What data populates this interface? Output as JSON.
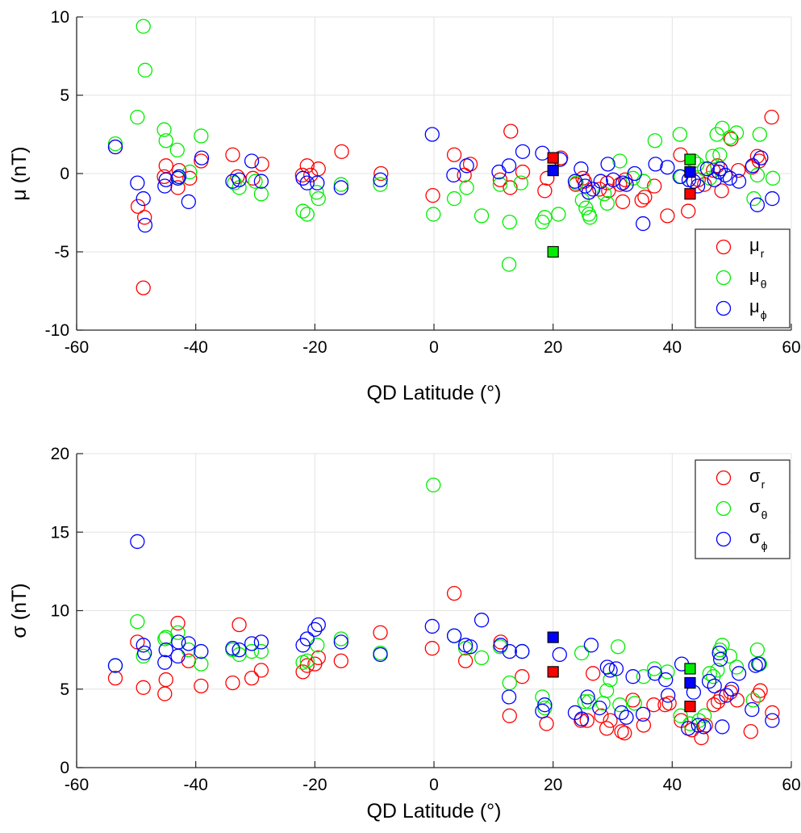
{
  "chart_data": [
    {
      "type": "scatter",
      "xlabel": "QD Latitude (°)",
      "ylabel": "μ (nT)",
      "xlim": [
        -60,
        60
      ],
      "ylim": [
        -10,
        10
      ],
      "xticks": [
        "-60",
        "-40",
        "-20",
        "0",
        "20",
        "40",
        "60"
      ],
      "yticks": [
        "-10",
        "-5",
        "0",
        "5",
        "10"
      ],
      "grid": true,
      "legend_position": "bottom-right",
      "series": [
        {
          "name": "μ_r",
          "label_main": "μ",
          "label_sub": "r",
          "color": "#ff0000",
          "x": [
            -53.5,
            -49.7,
            -48.8,
            -48.6,
            -45.3,
            -45.0,
            -43.0,
            -42.8,
            -41.0,
            -39.1,
            -33.8,
            -33.0,
            -30.4,
            -28.9,
            -22.1,
            -21.3,
            -20.7,
            -19.4,
            -15.5,
            -8.9,
            -0.2,
            3.4,
            5.1,
            6.1,
            11.1,
            12.8,
            12.9,
            14.9,
            18.6,
            19.0,
            21.3,
            23.8,
            25.0,
            25.3,
            26.0,
            27.8,
            29.1,
            29.3,
            31.2,
            31.7,
            32.1,
            34.9,
            35.4,
            37.0,
            39.2,
            41.4,
            42.7,
            44.4,
            45.4,
            46.9,
            47.6,
            48.3,
            49.9,
            51.1,
            53.4,
            54.3,
            54.6,
            56.7
          ],
          "y": [
            1.7,
            -2.1,
            -7.3,
            -2.8,
            -0.2,
            0.5,
            -0.9,
            0.2,
            -0.3,
            0.8,
            1.2,
            -0.2,
            -0.3,
            0.6,
            -0.1,
            0.5,
            -0.1,
            0.3,
            1.4,
            0.0,
            -1.4,
            1.2,
            -0.1,
            0.6,
            -0.4,
            -0.9,
            2.7,
            0.1,
            -1.1,
            -0.3,
            1.0,
            -0.7,
            -0.3,
            -0.5,
            -1.2,
            -1.0,
            -0.6,
            -1.1,
            -0.7,
            -1.8,
            -0.4,
            -1.7,
            -1.5,
            -0.8,
            -2.7,
            1.2,
            -2.4,
            -0.4,
            -0.7,
            0.2,
            0.5,
            -1.1,
            2.2,
            0.2,
            0.4,
            1.1,
            0.8,
            3.6
          ]
        },
        {
          "name": "μ_θ",
          "label_main": "μ",
          "label_sub": "θ",
          "color": "#00ee00",
          "x": [
            -53.5,
            -49.8,
            -48.8,
            -48.5,
            -45.3,
            -45.0,
            -43.1,
            -42.9,
            -41.0,
            -39.1,
            -33.5,
            -32.7,
            -30.0,
            -29.0,
            -22.0,
            -21.3,
            -19.7,
            -19.4,
            -15.6,
            -9.0,
            -0.1,
            3.4,
            5.5,
            8.0,
            11.1,
            12.6,
            12.7,
            14.6,
            18.2,
            18.6,
            20.9,
            23.9,
            24.9,
            25.5,
            26.0,
            26.2,
            28.6,
            29.1,
            31.2,
            33.4,
            35.2,
            37.1,
            41.3,
            41.5,
            43.6,
            44.2,
            45.4,
            46.3,
            46.8,
            47.5,
            48.0,
            48.4,
            49.7,
            50.8,
            53.7,
            54.3,
            54.7,
            56.9
          ],
          "y": [
            1.9,
            3.6,
            9.4,
            6.6,
            2.8,
            2.1,
            1.5,
            -0.3,
            0.1,
            2.4,
            -0.6,
            -0.9,
            -0.5,
            -1.3,
            -2.4,
            -2.6,
            -1.2,
            -1.6,
            -0.7,
            -0.7,
            -2.6,
            -1.6,
            -0.9,
            -2.7,
            -0.7,
            -5.8,
            -3.1,
            -0.6,
            -3.1,
            -2.8,
            -2.6,
            -0.6,
            -1.7,
            -2.2,
            -2.6,
            -2.8,
            -1.3,
            -1.9,
            0.8,
            -0.3,
            -0.5,
            2.1,
            2.5,
            -0.2,
            0.8,
            0.6,
            0.3,
            -0.3,
            1.1,
            2.5,
            1.2,
            2.9,
            2.3,
            2.6,
            -1.6,
            -0.1,
            2.5,
            -0.3
          ]
        },
        {
          "name": "μ_ϕ",
          "label_main": "μ",
          "label_sub": "ϕ",
          "color": "#0000ff",
          "x": [
            -53.5,
            -49.8,
            -48.8,
            -48.5,
            -45.2,
            -45.0,
            -43.0,
            -42.8,
            -41.2,
            -39.0,
            -33.8,
            -32.7,
            -30.6,
            -29.0,
            -22.0,
            -21.3,
            -19.6,
            -15.6,
            -9.0,
            -0.3,
            3.3,
            5.5,
            10.9,
            12.6,
            14.9,
            18.2,
            21.2,
            23.7,
            24.7,
            25.4,
            26.0,
            26.7,
            28.0,
            29.2,
            30.1,
            31.7,
            32.3,
            33.7,
            35.1,
            37.2,
            39.2,
            41.3,
            42.8,
            43.6,
            44.3,
            45.9,
            47.1,
            47.8,
            48.1,
            48.9,
            49.7,
            51.2,
            53.5,
            54.3,
            54.9,
            56.8
          ],
          "y": [
            1.7,
            -0.6,
            -1.6,
            -3.3,
            -0.8,
            -0.4,
            -0.3,
            -0.2,
            -1.8,
            1.0,
            -0.5,
            -0.4,
            0.8,
            -0.5,
            -0.3,
            -0.6,
            -0.6,
            -0.9,
            -0.4,
            2.5,
            -0.1,
            0.5,
            0.1,
            0.5,
            1.4,
            1.3,
            0.9,
            -0.5,
            0.3,
            -0.8,
            -1.2,
            -1.0,
            -0.5,
            0.6,
            -0.4,
            -0.6,
            -0.7,
            0.0,
            -3.2,
            0.6,
            0.4,
            -0.2,
            -0.4,
            -0.5,
            -0.8,
            0.3,
            -0.4,
            0.1,
            0.3,
            -0.1,
            -0.3,
            -0.5,
            0.5,
            -2.0,
            1.0,
            -1.6
          ]
        }
      ],
      "highlighted_points": [
        {
          "series": "μ_r",
          "x": 20.0,
          "y": 1.0,
          "color": "#ff0000"
        },
        {
          "series": "μ_θ",
          "x": 20.0,
          "y": -5.0,
          "color": "#00ee00"
        },
        {
          "series": "μ_ϕ",
          "x": 20.0,
          "y": 0.2,
          "color": "#0000ff"
        },
        {
          "series": "μ_r",
          "x": 43.0,
          "y": -1.3,
          "color": "#ff0000"
        },
        {
          "series": "μ_θ",
          "x": 43.0,
          "y": 0.9,
          "color": "#00ee00"
        },
        {
          "series": "μ_ϕ",
          "x": 43.0,
          "y": 0.1,
          "color": "#0000ff"
        }
      ]
    },
    {
      "type": "scatter",
      "xlabel": "QD Latitude (°)",
      "ylabel": "σ (nT)",
      "xlim": [
        -60,
        60
      ],
      "ylim": [
        0,
        20
      ],
      "xticks": [
        "-60",
        "-40",
        "-20",
        "0",
        "20",
        "40",
        "60"
      ],
      "yticks": [
        "0",
        "5",
        "10",
        "15",
        "20"
      ],
      "grid": true,
      "legend_position": "top-right",
      "series": [
        {
          "name": "σ_r",
          "label_main": "σ",
          "label_sub": "r",
          "color": "#ff0000",
          "x": [
            -53.5,
            -49.8,
            -48.8,
            -45.2,
            -45.0,
            -43.0,
            -41.2,
            -39.1,
            -33.8,
            -32.7,
            -30.6,
            -29.0,
            -22.0,
            -21.3,
            -20.0,
            -19.4,
            -15.6,
            -9.0,
            -0.3,
            3.4,
            5.3,
            11.2,
            12.7,
            14.8,
            18.9,
            24.7,
            25.7,
            26.7,
            28.1,
            29.0,
            29.6,
            31.5,
            32.0,
            33.4,
            35.2,
            36.9,
            38.8,
            39.5,
            41.5,
            43.3,
            44.9,
            45.6,
            47.0,
            47.7,
            48.2,
            49.8,
            50.9,
            53.2,
            54.4,
            54.8,
            56.8
          ],
          "y": [
            5.7,
            8.0,
            5.1,
            4.7,
            5.6,
            9.2,
            6.8,
            5.2,
            5.4,
            9.1,
            5.7,
            6.2,
            6.1,
            6.5,
            6.6,
            7.0,
            6.8,
            8.6,
            7.6,
            11.1,
            6.8,
            8.0,
            3.3,
            5.8,
            2.8,
            3.0,
            3.0,
            6.0,
            3.3,
            2.5,
            3.0,
            2.3,
            2.2,
            4.3,
            2.7,
            4.0,
            4.0,
            4.1,
            3.0,
            2.4,
            1.9,
            2.7,
            4.0,
            4.2,
            4.5,
            4.8,
            4.3,
            2.3,
            4.6,
            4.9,
            3.5
          ]
        },
        {
          "name": "σ_θ",
          "label_main": "σ",
          "label_sub": "θ",
          "color": "#00ee00",
          "x": [
            -53.5,
            -49.8,
            -48.8,
            -45.2,
            -45.0,
            -43.0,
            -41.2,
            -39.1,
            -33.8,
            -32.7,
            -30.6,
            -29.0,
            -22.0,
            -21.3,
            -19.6,
            -15.6,
            -9.0,
            -0.1,
            3.4,
            5.3,
            8.0,
            11.1,
            12.7,
            14.8,
            18.2,
            18.6,
            24.8,
            25.3,
            26.0,
            28.4,
            29.0,
            29.6,
            30.9,
            31.2,
            33.7,
            35.2,
            37.0,
            39.2,
            41.4,
            43.0,
            44.5,
            45.4,
            46.3,
            46.9,
            47.6,
            48.0,
            48.4,
            49.7,
            50.8,
            53.6,
            54.3,
            54.7
          ],
          "y": [
            6.5,
            9.3,
            7.1,
            8.2,
            8.3,
            8.6,
            7.5,
            6.6,
            7.5,
            7.2,
            7.4,
            7.4,
            6.7,
            6.8,
            7.8,
            8.2,
            7.3,
            18.0,
            8.4,
            7.6,
            7.0,
            7.7,
            5.4,
            7.4,
            4.5,
            3.8,
            7.3,
            4.2,
            4.2,
            4.1,
            4.9,
            5.6,
            7.7,
            4.0,
            4.1,
            5.8,
            6.3,
            6.1,
            3.3,
            2.8,
            3.0,
            3.3,
            6.0,
            5.8,
            6.2,
            7.5,
            7.8,
            7.1,
            6.4,
            4.3,
            7.5,
            6.6
          ]
        },
        {
          "name": "σ_ϕ",
          "label_main": "σ",
          "label_sub": "ϕ",
          "color": "#0000ff",
          "x": [
            -53.5,
            -49.8,
            -48.8,
            -48.6,
            -45.2,
            -45.0,
            -43.0,
            -42.9,
            -41.2,
            -39.1,
            -33.8,
            -32.7,
            -30.6,
            -29.0,
            -22.0,
            -21.3,
            -20.0,
            -19.4,
            -15.6,
            -9.0,
            -0.3,
            3.4,
            5.3,
            6.1,
            8.0,
            11.2,
            12.6,
            12.7,
            14.8,
            18.2,
            18.6,
            21.1,
            23.7,
            24.8,
            25.8,
            26.4,
            27.8,
            29.1,
            29.6,
            30.6,
            31.5,
            32.3,
            33.4,
            35.1,
            37.1,
            38.9,
            39.3,
            41.6,
            42.7,
            43.6,
            44.4,
            45.3,
            46.2,
            47.1,
            47.9,
            48.1,
            48.4,
            49.1,
            50.0,
            51.2,
            53.4,
            54.0,
            54.5,
            56.8
          ],
          "y": [
            6.5,
            14.4,
            7.8,
            7.3,
            6.7,
            7.5,
            7.1,
            8.0,
            7.9,
            7.4,
            7.6,
            7.5,
            7.9,
            8.0,
            7.8,
            8.2,
            8.8,
            9.1,
            8.0,
            7.2,
            9.0,
            8.4,
            7.8,
            7.7,
            9.4,
            7.8,
            4.5,
            7.4,
            7.4,
            3.6,
            4.0,
            7.2,
            3.5,
            3.1,
            4.5,
            7.8,
            3.8,
            6.4,
            6.2,
            6.3,
            3.5,
            3.2,
            5.8,
            3.4,
            6.0,
            5.6,
            4.6,
            6.6,
            2.5,
            4.8,
            2.7,
            2.6,
            5.5,
            5.2,
            7.3,
            6.9,
            2.6,
            4.6,
            5.0,
            6.0,
            3.7,
            6.5,
            6.6,
            3.0
          ]
        }
      ],
      "highlighted_points": [
        {
          "series": "σ_r",
          "x": 20.0,
          "y": 6.1,
          "color": "#ff0000"
        },
        {
          "series": "σ_ϕ",
          "x": 20.0,
          "y": 8.3,
          "color": "#0000ff"
        },
        {
          "series": "σ_θ",
          "x": 43.0,
          "y": 6.3,
          "color": "#00ee00"
        },
        {
          "series": "σ_ϕ",
          "x": 43.0,
          "y": 5.4,
          "color": "#0000ff"
        },
        {
          "series": "σ_r",
          "x": 43.0,
          "y": 3.9,
          "color": "#ff0000"
        }
      ]
    }
  ]
}
